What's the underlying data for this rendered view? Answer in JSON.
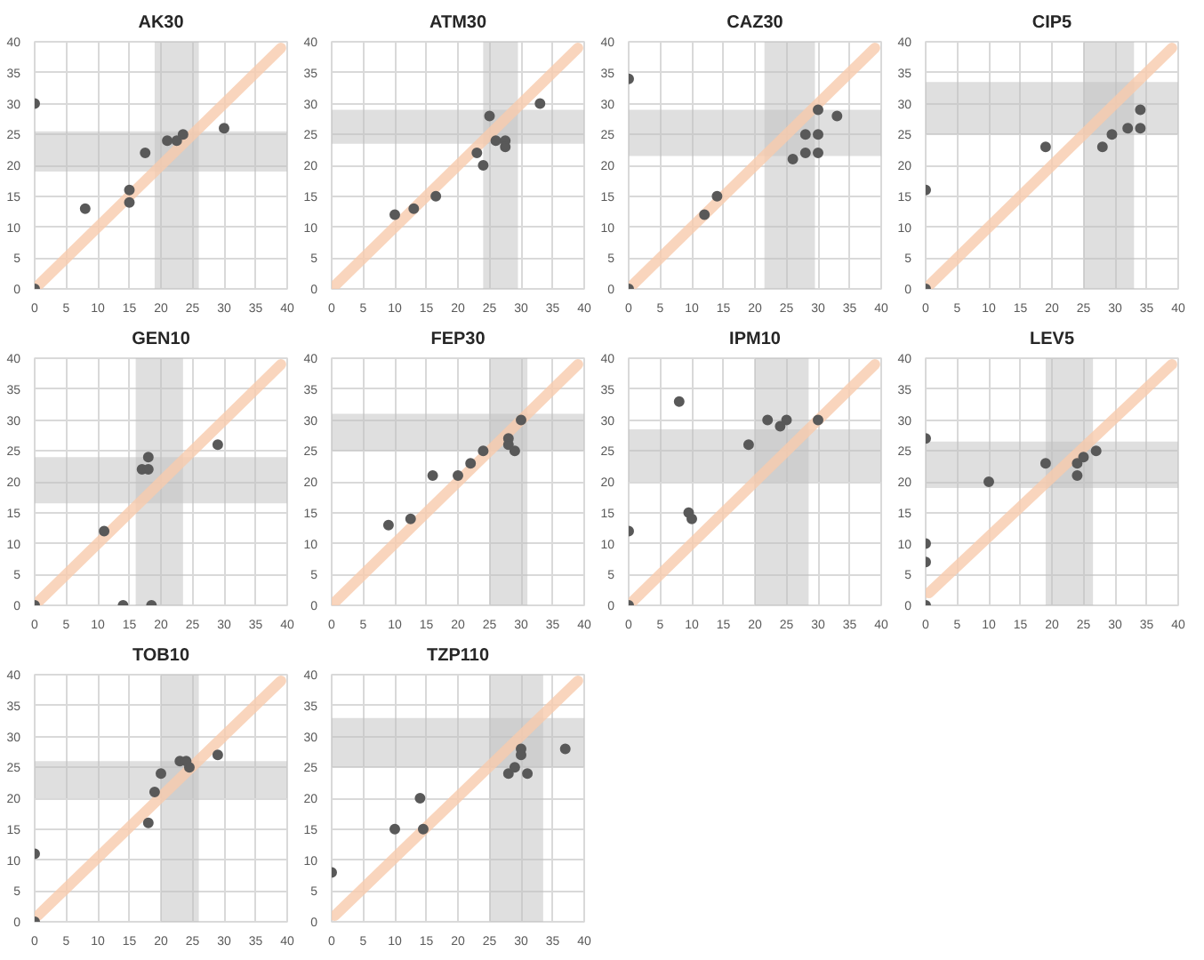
{
  "chart_data": [
    {
      "type": "scatter",
      "title": "AK30",
      "xlim": [
        0,
        40
      ],
      "ylim": [
        0,
        40
      ],
      "xticks": [
        0,
        5,
        10,
        15,
        20,
        25,
        30,
        35,
        40
      ],
      "yticks": [
        0,
        5,
        10,
        15,
        20,
        25,
        30,
        35,
        40
      ],
      "grid": true,
      "bands": [
        {
          "axis": "x",
          "from": 19,
          "to": 26,
          "color": "#bfbfbf"
        },
        {
          "axis": "y",
          "from": 19,
          "to": 25.5,
          "color": "#bfbfbf"
        }
      ],
      "series": [
        {
          "color": "#595959",
          "marker": "circle",
          "x": [
            0,
            0,
            8,
            15,
            15,
            17.5,
            21,
            22.5,
            23.5,
            30
          ],
          "values": [
            30,
            0,
            13,
            16,
            14,
            22,
            24,
            24,
            25,
            26
          ]
        },
        {
          "type": "line",
          "marker": "none",
          "color": "#f8cbad",
          "x": [
            0.5,
            39
          ],
          "values": [
            0.5,
            39
          ]
        }
      ]
    },
    {
      "type": "scatter",
      "title": "ATM30",
      "xlim": [
        0,
        40
      ],
      "ylim": [
        0,
        40
      ],
      "xticks": [
        0,
        5,
        10,
        15,
        20,
        25,
        30,
        35,
        40
      ],
      "yticks": [
        0,
        5,
        10,
        15,
        20,
        25,
        30,
        35,
        40
      ],
      "grid": true,
      "bands": [
        {
          "axis": "x",
          "from": 24,
          "to": 29.5,
          "color": "#bfbfbf"
        },
        {
          "axis": "y",
          "from": 23.5,
          "to": 29,
          "color": "#bfbfbf"
        }
      ],
      "series": [
        {
          "color": "#595959",
          "marker": "circle",
          "x": [
            10,
            13,
            16.5,
            23,
            24,
            25,
            26,
            27.5,
            27.5,
            33
          ],
          "values": [
            12,
            13,
            15,
            22,
            20,
            28,
            24,
            24,
            23,
            30
          ]
        },
        {
          "type": "line",
          "marker": "none",
          "color": "#f8cbad",
          "x": [
            0.5,
            39
          ],
          "values": [
            0.5,
            39
          ]
        }
      ]
    },
    {
      "type": "scatter",
      "title": "CAZ30",
      "xlim": [
        0,
        40
      ],
      "ylim": [
        0,
        40
      ],
      "xticks": [
        0,
        5,
        10,
        15,
        20,
        25,
        30,
        35,
        40
      ],
      "yticks": [
        0,
        5,
        10,
        15,
        20,
        25,
        30,
        35,
        40
      ],
      "grid": true,
      "bands": [
        {
          "axis": "x",
          "from": 21.5,
          "to": 29.5,
          "color": "#bfbfbf"
        },
        {
          "axis": "y",
          "from": 21.5,
          "to": 29,
          "color": "#bfbfbf"
        }
      ],
      "series": [
        {
          "color": "#595959",
          "marker": "circle",
          "x": [
            0,
            0,
            12,
            14,
            26,
            28,
            28,
            30,
            30,
            30,
            33
          ],
          "values": [
            34,
            0,
            12,
            15,
            21,
            25,
            22,
            29,
            25,
            22,
            28
          ]
        },
        {
          "type": "line",
          "marker": "none",
          "color": "#f8cbad",
          "x": [
            0.5,
            39
          ],
          "values": [
            0.5,
            39
          ]
        }
      ]
    },
    {
      "type": "scatter",
      "title": "CIP5",
      "xlim": [
        0,
        40
      ],
      "ylim": [
        0,
        40
      ],
      "xticks": [
        0,
        5,
        10,
        15,
        20,
        25,
        30,
        35,
        40
      ],
      "yticks": [
        0,
        5,
        10,
        15,
        20,
        25,
        30,
        35,
        40
      ],
      "grid": true,
      "bands": [
        {
          "axis": "x",
          "from": 25,
          "to": 33,
          "color": "#bfbfbf"
        },
        {
          "axis": "y",
          "from": 25,
          "to": 33.5,
          "color": "#bfbfbf"
        }
      ],
      "series": [
        {
          "color": "#595959",
          "marker": "circle",
          "x": [
            0,
            0,
            19,
            28,
            29.5,
            32,
            34,
            34
          ],
          "values": [
            16,
            0,
            23,
            23,
            25,
            26,
            29,
            26
          ]
        },
        {
          "type": "line",
          "marker": "none",
          "color": "#f8cbad",
          "x": [
            0.5,
            39
          ],
          "values": [
            0.5,
            39
          ]
        }
      ]
    },
    {
      "type": "scatter",
      "title": "GEN10",
      "xlim": [
        0,
        40
      ],
      "ylim": [
        0,
        40
      ],
      "xticks": [
        0,
        5,
        10,
        15,
        20,
        25,
        30,
        35,
        40
      ],
      "yticks": [
        0,
        5,
        10,
        15,
        20,
        25,
        30,
        35,
        40
      ],
      "grid": true,
      "bands": [
        {
          "axis": "x",
          "from": 16,
          "to": 23.5,
          "color": "#bfbfbf"
        },
        {
          "axis": "y",
          "from": 16.5,
          "to": 24,
          "color": "#bfbfbf"
        }
      ],
      "series": [
        {
          "color": "#595959",
          "marker": "circle",
          "x": [
            0,
            11,
            14,
            17,
            18,
            18,
            18.5,
            29
          ],
          "values": [
            0,
            12,
            0,
            22,
            22,
            24,
            0,
            26
          ]
        },
        {
          "type": "line",
          "marker": "none",
          "color": "#f8cbad",
          "x": [
            0.5,
            39
          ],
          "values": [
            0.5,
            39
          ]
        }
      ]
    },
    {
      "type": "scatter",
      "title": "FEP30",
      "xlim": [
        0,
        40
      ],
      "ylim": [
        0,
        40
      ],
      "xticks": [
        0,
        5,
        10,
        15,
        20,
        25,
        30,
        35,
        40
      ],
      "yticks": [
        0,
        5,
        10,
        15,
        20,
        25,
        30,
        35,
        40
      ],
      "grid": true,
      "bands": [
        {
          "axis": "x",
          "from": 25,
          "to": 31,
          "color": "#bfbfbf"
        },
        {
          "axis": "y",
          "from": 25,
          "to": 31,
          "color": "#bfbfbf"
        }
      ],
      "series": [
        {
          "color": "#595959",
          "marker": "circle",
          "x": [
            9,
            12.5,
            16,
            20,
            22,
            24,
            28,
            28,
            29,
            30
          ],
          "values": [
            13,
            14,
            21,
            21,
            23,
            25,
            27,
            26,
            25,
            30
          ]
        },
        {
          "type": "line",
          "marker": "none",
          "color": "#f8cbad",
          "x": [
            0.5,
            39
          ],
          "values": [
            0.5,
            39
          ]
        }
      ]
    },
    {
      "type": "scatter",
      "title": "IPM10",
      "xlim": [
        0,
        40
      ],
      "ylim": [
        0,
        40
      ],
      "xticks": [
        0,
        5,
        10,
        15,
        20,
        25,
        30,
        35,
        40
      ],
      "yticks": [
        0,
        5,
        10,
        15,
        20,
        25,
        30,
        35,
        40
      ],
      "grid": true,
      "bands": [
        {
          "axis": "x",
          "from": 20,
          "to": 28.5,
          "color": "#bfbfbf"
        },
        {
          "axis": "y",
          "from": 20,
          "to": 28.5,
          "color": "#bfbfbf"
        }
      ],
      "series": [
        {
          "color": "#595959",
          "marker": "circle",
          "x": [
            0,
            0,
            8,
            9.5,
            10,
            19,
            22,
            24,
            25,
            30
          ],
          "values": [
            12,
            0,
            33,
            15,
            14,
            26,
            30,
            29,
            30,
            30
          ]
        },
        {
          "type": "line",
          "marker": "none",
          "color": "#f8cbad",
          "x": [
            0.5,
            39
          ],
          "values": [
            0.5,
            39
          ]
        }
      ]
    },
    {
      "type": "scatter",
      "title": "LEV5",
      "xlim": [
        0,
        40
      ],
      "ylim": [
        0,
        40
      ],
      "xticks": [
        0,
        5,
        10,
        15,
        20,
        25,
        30,
        35,
        40
      ],
      "yticks": [
        0,
        5,
        10,
        15,
        20,
        25,
        30,
        35,
        40
      ],
      "grid": true,
      "bands": [
        {
          "axis": "x",
          "from": 19,
          "to": 26.5,
          "color": "#bfbfbf"
        },
        {
          "axis": "y",
          "from": 19,
          "to": 26.5,
          "color": "#bfbfbf"
        }
      ],
      "series": [
        {
          "color": "#595959",
          "marker": "circle",
          "x": [
            0,
            0,
            0,
            0,
            10,
            19,
            24,
            24,
            25,
            27
          ],
          "values": [
            27,
            10,
            7,
            0,
            20,
            23,
            23,
            21,
            24,
            25
          ]
        },
        {
          "type": "line",
          "marker": "none",
          "color": "#f8cbad",
          "x": [
            0.5,
            39
          ],
          "values": [
            2,
            39
          ]
        }
      ]
    },
    {
      "type": "scatter",
      "title": "TOB10",
      "xlim": [
        0,
        40
      ],
      "ylim": [
        0,
        40
      ],
      "xticks": [
        0,
        5,
        10,
        15,
        20,
        25,
        30,
        35,
        40
      ],
      "yticks": [
        0,
        5,
        10,
        15,
        20,
        25,
        30,
        35,
        40
      ],
      "grid": true,
      "bands": [
        {
          "axis": "x",
          "from": 20,
          "to": 26,
          "color": "#bfbfbf"
        },
        {
          "axis": "y",
          "from": 20,
          "to": 26,
          "color": "#bfbfbf"
        }
      ],
      "series": [
        {
          "color": "#595959",
          "marker": "circle",
          "x": [
            0,
            0,
            18,
            19,
            20,
            23,
            24,
            24.5,
            29
          ],
          "values": [
            11,
            0,
            16,
            21,
            24,
            26,
            26,
            25,
            27
          ]
        },
        {
          "type": "line",
          "marker": "none",
          "color": "#f8cbad",
          "x": [
            0.5,
            39
          ],
          "values": [
            1,
            39
          ]
        }
      ]
    },
    {
      "type": "scatter",
      "title": "TZP110",
      "xlim": [
        0,
        40
      ],
      "ylim": [
        0,
        40
      ],
      "xticks": [
        0,
        5,
        10,
        15,
        20,
        25,
        30,
        35,
        40
      ],
      "yticks": [
        0,
        5,
        10,
        15,
        20,
        25,
        30,
        35,
        40
      ],
      "grid": true,
      "bands": [
        {
          "axis": "x",
          "from": 25,
          "to": 33.5,
          "color": "#bfbfbf"
        },
        {
          "axis": "y",
          "from": 25,
          "to": 33,
          "color": "#bfbfbf"
        }
      ],
      "series": [
        {
          "color": "#595959",
          "marker": "circle",
          "x": [
            0,
            10,
            14,
            14.5,
            28,
            29,
            30,
            30,
            31,
            37
          ],
          "values": [
            8,
            15,
            20,
            15,
            24,
            25,
            28,
            27,
            24,
            28
          ]
        },
        {
          "type": "line",
          "marker": "none",
          "color": "#f8cbad",
          "x": [
            0.5,
            39
          ],
          "values": [
            1,
            39
          ]
        }
      ]
    }
  ]
}
